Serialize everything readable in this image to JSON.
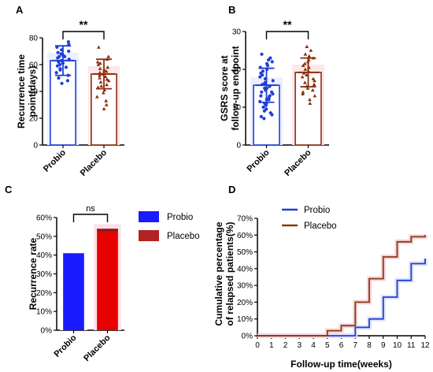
{
  "chart_data": [
    {
      "panel": "A",
      "type": "bar",
      "ylabel": "Recurrence time point(days)",
      "ylim": [
        0,
        80
      ],
      "yticks": [
        "0",
        "20",
        "40",
        "60",
        "80"
      ],
      "categories": [
        "Probio",
        "Placebo"
      ],
      "values": [
        63,
        53
      ],
      "sd": [
        11,
        11
      ],
      "colors": [
        "#1f3fd6",
        "#8b2e0e"
      ],
      "significance": "**",
      "points": [
        [
          77,
          75,
          73,
          71,
          70,
          69,
          68,
          67,
          66,
          66,
          65,
          64,
          63,
          62,
          61,
          60,
          59,
          58,
          57,
          56,
          54,
          52,
          50,
          48,
          46
        ],
        [
          73,
          66,
          64,
          62,
          61,
          60,
          58,
          57,
          56,
          55,
          54,
          53,
          52,
          51,
          50,
          49,
          48,
          47,
          45,
          44,
          43,
          41,
          39,
          36,
          33,
          30,
          27
        ]
      ]
    },
    {
      "panel": "B",
      "type": "bar",
      "ylabel": "GSRS score at follow-up endpoint",
      "ylim": [
        0,
        30
      ],
      "yticks": [
        "0",
        "10",
        "20",
        "30"
      ],
      "categories": [
        "Probio",
        "Placebo"
      ],
      "values": [
        15.8,
        19.2
      ],
      "sd": [
        4.5,
        3.8
      ],
      "colors": [
        "#1f3fd6",
        "#8b2e0e"
      ],
      "significance": "**",
      "points": [
        [
          24,
          23,
          22.5,
          22,
          21.5,
          21,
          20.5,
          20,
          19.5,
          19,
          18.5,
          18,
          17.5,
          17,
          16.5,
          16,
          16,
          15.5,
          15,
          15,
          14.5,
          14,
          14,
          13.5,
          13,
          13,
          12.5,
          12,
          12,
          11.5,
          11,
          11,
          10.5,
          10,
          9.5,
          9,
          8.5,
          8,
          7.5,
          7
        ],
        [
          26,
          25,
          24,
          23.5,
          23,
          22.5,
          22,
          21.5,
          21,
          20.5,
          20,
          19.5,
          19,
          18.5,
          18,
          17.5,
          17,
          16.5,
          16,
          15.5,
          15,
          14.5,
          14,
          13.5,
          13,
          12,
          11
        ]
      ]
    },
    {
      "panel": "C",
      "type": "bar",
      "ylabel": "Recurrence rate",
      "ylim": [
        0,
        60
      ],
      "yticks": [
        "0%",
        "10%",
        "20%",
        "30%",
        "40%",
        "50%",
        "60%"
      ],
      "categories": [
        "Probio",
        "Placebo"
      ],
      "values": [
        41,
        54
      ],
      "colors": [
        "#1a1aff",
        "#e60000"
      ],
      "significance": "ns",
      "legend": [
        "Probio",
        "Placebo"
      ],
      "legend_colors": [
        "#1a1aff",
        "#b22222"
      ]
    },
    {
      "panel": "D",
      "type": "line",
      "xlabel": "Follow-up time(weeks)",
      "ylabel": "Cumulative percentage of relapsed patients(%)",
      "xlim": [
        0,
        12
      ],
      "ylim": [
        0,
        70
      ],
      "xticks": [
        "0",
        "1",
        "2",
        "3",
        "4",
        "5",
        "6",
        "7",
        "8",
        "9",
        "10",
        "11",
        "12"
      ],
      "yticks": [
        "0%",
        "10%",
        "20%",
        "30%",
        "40%",
        "50%",
        "60%",
        "70%"
      ],
      "legend": [
        "Probio",
        "Placebo"
      ],
      "series": [
        {
          "name": "Probio",
          "color": "#1f3fd6",
          "steps": [
            [
              0,
              0
            ],
            [
              7,
              0
            ],
            [
              7,
              5
            ],
            [
              8,
              5
            ],
            [
              8,
              10
            ],
            [
              9,
              10
            ],
            [
              9,
              23
            ],
            [
              10,
              23
            ],
            [
              10,
              33
            ],
            [
              11,
              33
            ],
            [
              11,
              43
            ],
            [
              12,
              43
            ],
            [
              12,
              46
            ]
          ]
        },
        {
          "name": "Placebo",
          "color": "#8b3a0e",
          "steps": [
            [
              0,
              0
            ],
            [
              5,
              0
            ],
            [
              5,
              3
            ],
            [
              6,
              3
            ],
            [
              6,
              6
            ],
            [
              7,
              6
            ],
            [
              7,
              20
            ],
            [
              8,
              20
            ],
            [
              8,
              34
            ],
            [
              9,
              34
            ],
            [
              9,
              47
            ],
            [
              10,
              47
            ],
            [
              10,
              56
            ],
            [
              11,
              56
            ],
            [
              11,
              59
            ],
            [
              12,
              59
            ],
            [
              12,
              60
            ]
          ]
        }
      ]
    }
  ],
  "panel_labels": [
    "A",
    "B",
    "C",
    "D"
  ]
}
